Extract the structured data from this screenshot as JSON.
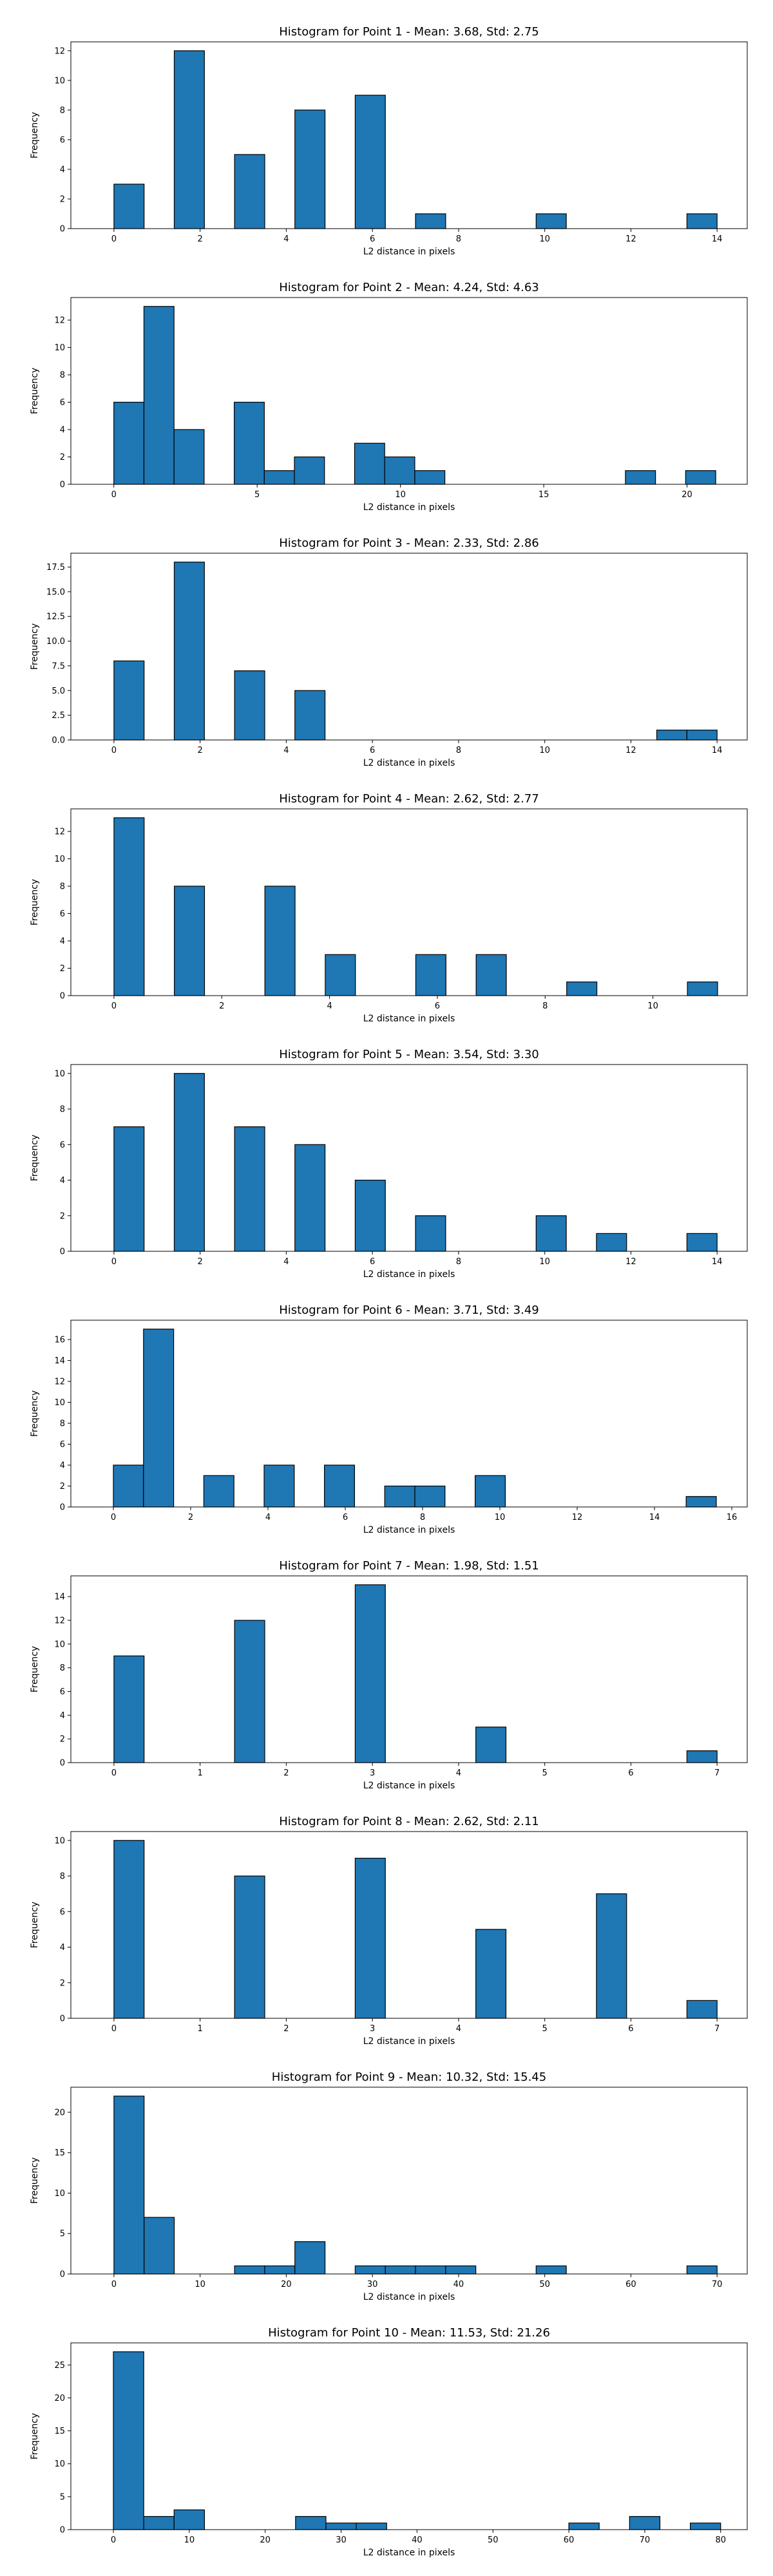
{
  "chart_data": [
    {
      "type": "bar",
      "title": "Histogram for Point 1 - Mean: 3.68, Std: 2.75",
      "xlabel": "L2 distance in pixels",
      "ylabel": "Frequency",
      "xlim": [
        -1.0,
        14.7
      ],
      "ylim": [
        0,
        12.6
      ],
      "xticks": [
        0,
        2,
        4,
        6,
        8,
        10,
        12,
        14
      ],
      "yticks": [
        0,
        2,
        4,
        6,
        8,
        10,
        12
      ],
      "bins": [
        {
          "x0": 0.0,
          "x1": 0.7,
          "v": 3
        },
        {
          "x0": 1.4,
          "x1": 2.1,
          "v": 12
        },
        {
          "x0": 2.8,
          "x1": 3.5,
          "v": 5
        },
        {
          "x0": 4.2,
          "x1": 4.9,
          "v": 8
        },
        {
          "x0": 5.6,
          "x1": 6.3,
          "v": 9
        },
        {
          "x0": 7.0,
          "x1": 7.7,
          "v": 1
        },
        {
          "x0": 9.8,
          "x1": 10.5,
          "v": 1
        },
        {
          "x0": 13.3,
          "x1": 14.0,
          "v": 1
        }
      ]
    },
    {
      "type": "bar",
      "title": "Histogram for Point 2 - Mean: 4.24, Std: 4.63",
      "xlabel": "L2 distance in pixels",
      "ylabel": "Frequency",
      "xlim": [
        -1.5,
        22.1
      ],
      "ylim": [
        0,
        13.65
      ],
      "xticks": [
        0,
        5,
        10,
        15,
        20
      ],
      "yticks": [
        0,
        2,
        4,
        6,
        8,
        10,
        12
      ],
      "bins": [
        {
          "x0": 0.0,
          "x1": 1.05,
          "v": 6
        },
        {
          "x0": 1.05,
          "x1": 2.1,
          "v": 13
        },
        {
          "x0": 2.1,
          "x1": 3.15,
          "v": 4
        },
        {
          "x0": 4.2,
          "x1": 5.25,
          "v": 6
        },
        {
          "x0": 5.25,
          "x1": 6.3,
          "v": 1
        },
        {
          "x0": 6.3,
          "x1": 7.35,
          "v": 2
        },
        {
          "x0": 8.4,
          "x1": 9.45,
          "v": 3
        },
        {
          "x0": 9.45,
          "x1": 10.5,
          "v": 2
        },
        {
          "x0": 10.5,
          "x1": 11.55,
          "v": 1
        },
        {
          "x0": 17.85,
          "x1": 18.9,
          "v": 1
        },
        {
          "x0": 19.95,
          "x1": 21.0,
          "v": 1
        }
      ]
    },
    {
      "type": "bar",
      "title": "Histogram for Point 3 - Mean: 2.33, Std: 2.86",
      "xlabel": "L2 distance in pixels",
      "ylabel": "Frequency",
      "xlim": [
        -1.0,
        14.7
      ],
      "ylim": [
        0,
        18.9
      ],
      "xticks": [
        0,
        2,
        4,
        6,
        8,
        10,
        12,
        14
      ],
      "yticks": [
        0.0,
        2.5,
        5.0,
        7.5,
        10.0,
        12.5,
        15.0,
        17.5
      ],
      "ytickfmt": "1f",
      "bins": [
        {
          "x0": 0.0,
          "x1": 0.7,
          "v": 8
        },
        {
          "x0": 1.4,
          "x1": 2.1,
          "v": 18
        },
        {
          "x0": 2.8,
          "x1": 3.5,
          "v": 7
        },
        {
          "x0": 4.2,
          "x1": 4.9,
          "v": 5
        },
        {
          "x0": 12.6,
          "x1": 13.3,
          "v": 1
        },
        {
          "x0": 13.3,
          "x1": 14.0,
          "v": 1
        }
      ]
    },
    {
      "type": "bar",
      "title": "Histogram for Point 4 - Mean: 2.62, Std: 2.77",
      "xlabel": "L2 distance in pixels",
      "ylabel": "Frequency",
      "xlim": [
        -0.8,
        11.75
      ],
      "ylim": [
        0,
        13.65
      ],
      "xticks": [
        0,
        2,
        4,
        6,
        8,
        10
      ],
      "yticks": [
        0,
        2,
        4,
        6,
        8,
        10,
        12
      ],
      "bins": [
        {
          "x0": 0.0,
          "x1": 0.56,
          "v": 13
        },
        {
          "x0": 1.12,
          "x1": 1.68,
          "v": 8
        },
        {
          "x0": 2.8,
          "x1": 3.36,
          "v": 8
        },
        {
          "x0": 3.92,
          "x1": 4.48,
          "v": 3
        },
        {
          "x0": 5.6,
          "x1": 6.16,
          "v": 3
        },
        {
          "x0": 6.72,
          "x1": 7.28,
          "v": 3
        },
        {
          "x0": 8.4,
          "x1": 8.96,
          "v": 1
        },
        {
          "x0": 10.64,
          "x1": 11.2,
          "v": 1
        }
      ]
    },
    {
      "type": "bar",
      "title": "Histogram for Point 5 - Mean: 3.54, Std: 3.30",
      "xlabel": "L2 distance in pixels",
      "ylabel": "Frequency",
      "xlim": [
        -1.0,
        14.7
      ],
      "ylim": [
        0,
        10.5
      ],
      "xticks": [
        0,
        2,
        4,
        6,
        8,
        10,
        12,
        14
      ],
      "yticks": [
        0,
        2,
        4,
        6,
        8,
        10
      ],
      "bins": [
        {
          "x0": 0.0,
          "x1": 0.7,
          "v": 7
        },
        {
          "x0": 1.4,
          "x1": 2.1,
          "v": 10
        },
        {
          "x0": 2.8,
          "x1": 3.5,
          "v": 7
        },
        {
          "x0": 4.2,
          "x1": 4.9,
          "v": 6
        },
        {
          "x0": 5.6,
          "x1": 6.3,
          "v": 4
        },
        {
          "x0": 7.0,
          "x1": 7.7,
          "v": 2
        },
        {
          "x0": 9.8,
          "x1": 10.5,
          "v": 2
        },
        {
          "x0": 11.2,
          "x1": 11.9,
          "v": 1
        },
        {
          "x0": 13.3,
          "x1": 14.0,
          "v": 1
        }
      ]
    },
    {
      "type": "bar",
      "title": "Histogram for Point 6 - Mean: 3.71, Std: 3.49",
      "xlabel": "L2 distance in pixels",
      "ylabel": "Frequency",
      "xlim": [
        -1.1,
        16.4
      ],
      "ylim": [
        0,
        17.85
      ],
      "xticks": [
        0,
        2,
        4,
        6,
        8,
        10,
        12,
        14,
        16
      ],
      "yticks": [
        0,
        2,
        4,
        6,
        8,
        10,
        12,
        14,
        16
      ],
      "bins": [
        {
          "x0": 0.0,
          "x1": 0.78,
          "v": 4
        },
        {
          "x0": 0.78,
          "x1": 1.56,
          "v": 17
        },
        {
          "x0": 2.34,
          "x1": 3.12,
          "v": 3
        },
        {
          "x0": 3.9,
          "x1": 4.68,
          "v": 4
        },
        {
          "x0": 5.46,
          "x1": 6.24,
          "v": 4
        },
        {
          "x0": 7.02,
          "x1": 7.8,
          "v": 2
        },
        {
          "x0": 7.8,
          "x1": 8.58,
          "v": 2
        },
        {
          "x0": 9.36,
          "x1": 10.14,
          "v": 3
        },
        {
          "x0": 14.82,
          "x1": 15.6,
          "v": 1
        }
      ]
    },
    {
      "type": "bar",
      "title": "Histogram for Point 7 - Mean: 1.98, Std: 1.51",
      "xlabel": "L2 distance in pixels",
      "ylabel": "Frequency",
      "xlim": [
        -0.5,
        7.35
      ],
      "ylim": [
        0,
        15.75
      ],
      "xticks": [
        0,
        1,
        2,
        3,
        4,
        5,
        6,
        7
      ],
      "yticks": [
        0,
        2,
        4,
        6,
        8,
        10,
        12,
        14
      ],
      "bins": [
        {
          "x0": 0.0,
          "x1": 0.35,
          "v": 9
        },
        {
          "x0": 1.4,
          "x1": 1.75,
          "v": 12
        },
        {
          "x0": 2.8,
          "x1": 3.15,
          "v": 15
        },
        {
          "x0": 4.2,
          "x1": 4.55,
          "v": 3
        },
        {
          "x0": 6.65,
          "x1": 7.0,
          "v": 1
        }
      ]
    },
    {
      "type": "bar",
      "title": "Histogram for Point 8 - Mean: 2.62, Std: 2.11",
      "xlabel": "L2 distance in pixels",
      "ylabel": "Frequency",
      "xlim": [
        -0.5,
        7.35
      ],
      "ylim": [
        0,
        10.5
      ],
      "xticks": [
        0,
        1,
        2,
        3,
        4,
        5,
        6,
        7
      ],
      "yticks": [
        0,
        2,
        4,
        6,
        8,
        10
      ],
      "bins": [
        {
          "x0": 0.0,
          "x1": 0.35,
          "v": 10
        },
        {
          "x0": 1.4,
          "x1": 1.75,
          "v": 8
        },
        {
          "x0": 2.8,
          "x1": 3.15,
          "v": 9
        },
        {
          "x0": 4.2,
          "x1": 4.55,
          "v": 5
        },
        {
          "x0": 5.6,
          "x1": 5.95,
          "v": 7
        },
        {
          "x0": 6.65,
          "x1": 7.0,
          "v": 1
        }
      ]
    },
    {
      "type": "bar",
      "title": "Histogram for Point 9 - Mean: 10.32, Std: 15.45",
      "xlabel": "L2 distance in pixels",
      "ylabel": "Frequency",
      "xlim": [
        -5.0,
        73.5
      ],
      "ylim": [
        0,
        23.1
      ],
      "xticks": [
        0,
        10,
        20,
        30,
        40,
        50,
        60,
        70
      ],
      "yticks": [
        0,
        5,
        10,
        15,
        20
      ],
      "bins": [
        {
          "x0": 0.0,
          "x1": 3.5,
          "v": 22
        },
        {
          "x0": 3.5,
          "x1": 7.0,
          "v": 7
        },
        {
          "x0": 14.0,
          "x1": 17.5,
          "v": 1
        },
        {
          "x0": 17.5,
          "x1": 21.0,
          "v": 1
        },
        {
          "x0": 21.0,
          "x1": 24.5,
          "v": 4
        },
        {
          "x0": 28.0,
          "x1": 31.5,
          "v": 1
        },
        {
          "x0": 31.5,
          "x1": 35.0,
          "v": 1
        },
        {
          "x0": 35.0,
          "x1": 38.5,
          "v": 1
        },
        {
          "x0": 38.5,
          "x1": 42.0,
          "v": 1
        },
        {
          "x0": 49.0,
          "x1": 52.5,
          "v": 1
        },
        {
          "x0": 66.5,
          "x1": 70.0,
          "v": 1
        }
      ]
    },
    {
      "type": "bar",
      "title": "Histogram for Point 10 - Mean: 11.53, Std: 21.26",
      "xlabel": "L2 distance in pixels",
      "ylabel": "Frequency",
      "xlim": [
        -5.6,
        83.5
      ],
      "ylim": [
        0,
        28.35
      ],
      "xticks": [
        0,
        10,
        20,
        30,
        40,
        50,
        60,
        70,
        80
      ],
      "yticks": [
        0,
        5,
        10,
        15,
        20,
        25
      ],
      "bins": [
        {
          "x0": 0.0,
          "x1": 4.0,
          "v": 27
        },
        {
          "x0": 4.0,
          "x1": 8.0,
          "v": 2
        },
        {
          "x0": 8.0,
          "x1": 12.0,
          "v": 3
        },
        {
          "x0": 24.0,
          "x1": 28.0,
          "v": 2
        },
        {
          "x0": 28.0,
          "x1": 32.0,
          "v": 1
        },
        {
          "x0": 32.0,
          "x1": 36.0,
          "v": 1
        },
        {
          "x0": 60.0,
          "x1": 64.0,
          "v": 1
        },
        {
          "x0": 68.0,
          "x1": 72.0,
          "v": 2
        },
        {
          "x0": 76.0,
          "x1": 80.0,
          "v": 1
        }
      ]
    }
  ],
  "colors": {
    "bar_fill": "#1f77b4",
    "bar_edge": "#000000",
    "axes": "#000000"
  }
}
